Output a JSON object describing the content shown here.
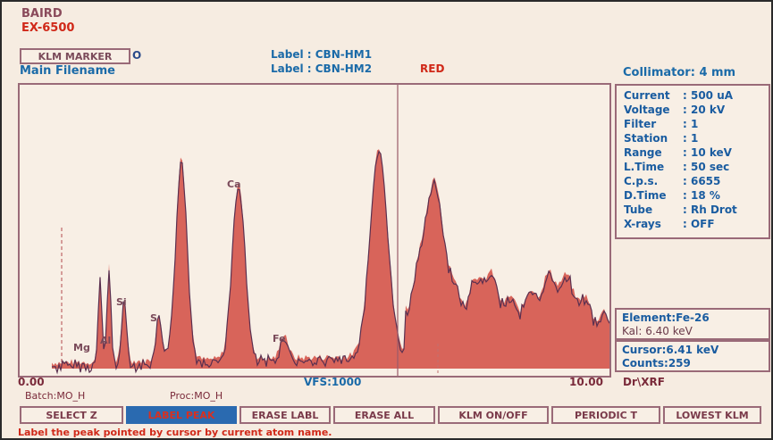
{
  "header": {
    "brand": "BAIRD",
    "model": "EX-6500",
    "marker_button": "KLM MARKER",
    "marker_suffix": "O",
    "main_filename": "Main Filename",
    "label1": "Label : CBN-HM1",
    "label2": "Label : CBN-HM2",
    "red_label": "RED",
    "collimator": "Collimator: 4 mm"
  },
  "settings": [
    {
      "name": "Current",
      "value": ": 500 uA"
    },
    {
      "name": "Voltage",
      "value": ": 20  kV"
    },
    {
      "name": "Filter",
      "value": ": 1"
    },
    {
      "name": "Station",
      "value": ": 1"
    },
    {
      "name": "Range",
      "value": ": 10  keV"
    },
    {
      "name": "L.Time",
      "value": ": 50  sec"
    },
    {
      "name": "C.p.s.",
      "value": ": 6655"
    },
    {
      "name": "D.Time",
      "value": ": 18  %"
    },
    {
      "name": "Tube",
      "value": ": Rh Drot"
    },
    {
      "name": "X-rays",
      "value": ": OFF"
    }
  ],
  "element_box": {
    "element": "Element:Fe-26",
    "kal": "Kal:  6.40 keV"
  },
  "cursor_box": {
    "cursor": "Cursor:6.41  keV",
    "counts": "Counts:259"
  },
  "plot": {
    "x_min_label": "0.00",
    "x_max_label": "10.00",
    "vfs": "VFS:1000",
    "dir": "Dr\\XRF",
    "batch": "Batch:MO_H",
    "proc": "Proc:MO_H",
    "peaks": [
      "Mg",
      "Al",
      "Si",
      "S",
      "Ca",
      "Fe"
    ]
  },
  "toolbar": {
    "buttons": [
      "SELECT Z",
      "LABEL PEAK",
      "ERASE LABL",
      "ERASE ALL",
      "KLM ON/OFF",
      "PERIODIC T",
      "LOWEST KLM"
    ],
    "active_index": 1
  },
  "status": "Label the peak pointed by cursor by current atom name."
}
